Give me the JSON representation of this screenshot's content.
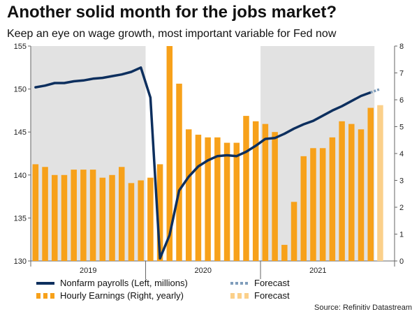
{
  "title": "Another solid month for the jobs market?",
  "subtitle": "Keep an eye on wage growth, most important variable for Fed now",
  "source": "Source: Refinitiv Datastream",
  "colors": {
    "payrolls": "#0d2f5e",
    "payrolls_forecast": "#7f9dbb",
    "earnings": "#f7a11a",
    "earnings_forecast": "#fbd08a",
    "shade": "#e2e2e2"
  },
  "chart_data": {
    "type": "bar",
    "x": [
      "2019-01",
      "2019-02",
      "2019-03",
      "2019-04",
      "2019-05",
      "2019-06",
      "2019-07",
      "2019-08",
      "2019-09",
      "2019-10",
      "2019-11",
      "2019-12",
      "2020-01",
      "2020-02",
      "2020-03",
      "2020-04",
      "2020-05",
      "2020-06",
      "2020-07",
      "2020-08",
      "2020-09",
      "2020-10",
      "2020-11",
      "2020-12",
      "2021-01",
      "2021-02",
      "2021-03",
      "2021-04",
      "2021-05",
      "2021-06",
      "2021-07",
      "2021-08",
      "2021-09",
      "2021-10",
      "2021-11",
      "2021-12"
    ],
    "x_tick_labels": [
      "2019",
      "2020",
      "2021"
    ],
    "shaded_years": [
      "2019",
      "2021"
    ],
    "left_axis": {
      "label": "",
      "ylim": [
        130,
        155
      ],
      "ticks": [
        130,
        135,
        140,
        145,
        150,
        155
      ]
    },
    "right_axis": {
      "label": "",
      "ylim": [
        0,
        8
      ],
      "ticks": [
        0,
        1,
        2,
        3,
        4,
        5,
        6,
        7,
        8
      ]
    },
    "series": [
      {
        "name": "Hourly Earnings (Right, yearly)",
        "type": "bar",
        "axis": "right",
        "values": [
          3.6,
          3.5,
          3.2,
          3.2,
          3.4,
          3.4,
          3.4,
          3.1,
          3.2,
          3.5,
          2.9,
          3.0,
          3.1,
          3.6,
          8.0,
          6.6,
          4.9,
          4.7,
          4.6,
          4.6,
          4.4,
          4.4,
          5.4,
          5.2,
          5.1,
          4.8,
          0.6,
          2.2,
          3.9,
          4.2,
          4.2,
          4.6,
          5.2,
          5.1,
          4.9,
          5.7
        ]
      },
      {
        "name": "Hourly Earnings Forecast",
        "type": "bar",
        "axis": "right",
        "x": [
          "2022-01"
        ],
        "values": [
          5.8
        ]
      },
      {
        "name": "Nonfarm payrolls (Left, millions)",
        "type": "line",
        "axis": "left",
        "values": [
          150.2,
          150.4,
          150.7,
          150.7,
          150.9,
          151.0,
          151.2,
          151.3,
          151.5,
          151.7,
          152.0,
          152.5,
          149.0,
          130.3,
          133.0,
          138.2,
          139.8,
          141.0,
          141.7,
          142.2,
          142.3,
          142.2,
          142.7,
          143.4,
          144.2,
          144.3,
          144.8,
          145.4,
          145.9,
          146.3,
          146.9,
          147.5,
          148.0,
          148.6,
          149.2,
          149.6
        ]
      },
      {
        "name": "Nonfarm payrolls Forecast",
        "type": "line",
        "axis": "left",
        "x": [
          "2021-12",
          "2022-01"
        ],
        "values": [
          149.6,
          150.0
        ]
      }
    ],
    "legend": [
      {
        "label": "Nonfarm payrolls (Left, millions)",
        "kind": "line",
        "color_key": "payrolls"
      },
      {
        "label": "Forecast",
        "kind": "dotted",
        "color_key": "payrolls_forecast"
      },
      {
        "label": "Hourly Earnings (Right, yearly)",
        "kind": "bar",
        "color_key": "earnings"
      },
      {
        "label": "Forecast",
        "kind": "bar",
        "color_key": "earnings_forecast"
      }
    ],
    "legend_position": "bottom-left",
    "grid": false
  }
}
